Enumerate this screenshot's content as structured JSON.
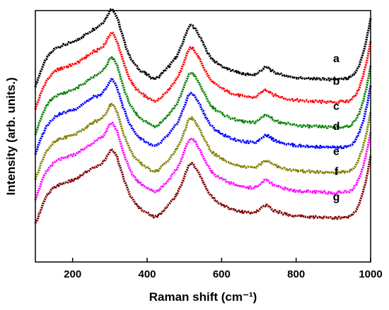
{
  "chart_data": {
    "type": "line",
    "title": "",
    "xlabel": "Raman shift (cm⁻¹)",
    "ylabel": "Intensity (arb. units.)",
    "xlim": [
      100,
      1000
    ],
    "ylim": [
      0,
      100
    ],
    "y_ticks_shown": false,
    "grid": false,
    "legend": "none; series labelled at right end of each curve",
    "x_ticks": [
      200,
      400,
      600,
      800,
      1000
    ],
    "series": [
      {
        "name": "a",
        "color": "#000000",
        "offset": 73,
        "peak1_scale": 1.0
      },
      {
        "name": "b",
        "color": "#ff0000",
        "offset": 64,
        "peak1_scale": 0.98
      },
      {
        "name": "c",
        "color": "#008000",
        "offset": 54,
        "peak1_scale": 0.99
      },
      {
        "name": "d",
        "color": "#0000ff",
        "offset": 46,
        "peak1_scale": 0.96
      },
      {
        "name": "e",
        "color": "#808000",
        "offset": 36,
        "peak1_scale": 0.97
      },
      {
        "name": "f",
        "color": "#ff00ff",
        "offset": 28,
        "peak1_scale": 0.99
      },
      {
        "name": "g",
        "color": "#800000",
        "offset": 18,
        "peak1_scale": 0.97
      }
    ],
    "profile_x": [
      100,
      110,
      120,
      130,
      140,
      150,
      160,
      170,
      180,
      190,
      200,
      210,
      220,
      230,
      240,
      250,
      260,
      270,
      280,
      290,
      300,
      305,
      310,
      320,
      330,
      340,
      350,
      360,
      370,
      380,
      390,
      400,
      410,
      420,
      430,
      440,
      450,
      460,
      470,
      480,
      490,
      500,
      505,
      510,
      515,
      520,
      525,
      530,
      540,
      550,
      560,
      570,
      580,
      590,
      600,
      620,
      640,
      660,
      680,
      690,
      700,
      710,
      715,
      720,
      725,
      730,
      740,
      760,
      780,
      800,
      830,
      860,
      900,
      920,
      940,
      950,
      960,
      970,
      980,
      990,
      1000
    ],
    "profile_y": [
      -3,
      1,
      5,
      8,
      10,
      11.5,
      12.5,
      13,
      13.5,
      14,
      14.5,
      15,
      16,
      17,
      18,
      19,
      20,
      21,
      22,
      24,
      27,
      28,
      27,
      24,
      19,
      14,
      10,
      7,
      5,
      3.5,
      2.5,
      1.5,
      0.5,
      0,
      0.5,
      2,
      3.5,
      5,
      7,
      9,
      12,
      16,
      18,
      20,
      21,
      21.2,
      20.5,
      19.5,
      17,
      14,
      11,
      8.5,
      7,
      6,
      5,
      3.5,
      2.5,
      1.8,
      1.5,
      1.6,
      2.5,
      3.8,
      4.3,
      4.5,
      4.2,
      3.6,
      2.5,
      1.5,
      0.8,
      0.3,
      0,
      -0.2,
      -0.5,
      -0.3,
      0,
      0.8,
      2.5,
      5.5,
      10,
      16,
      24
    ]
  }
}
